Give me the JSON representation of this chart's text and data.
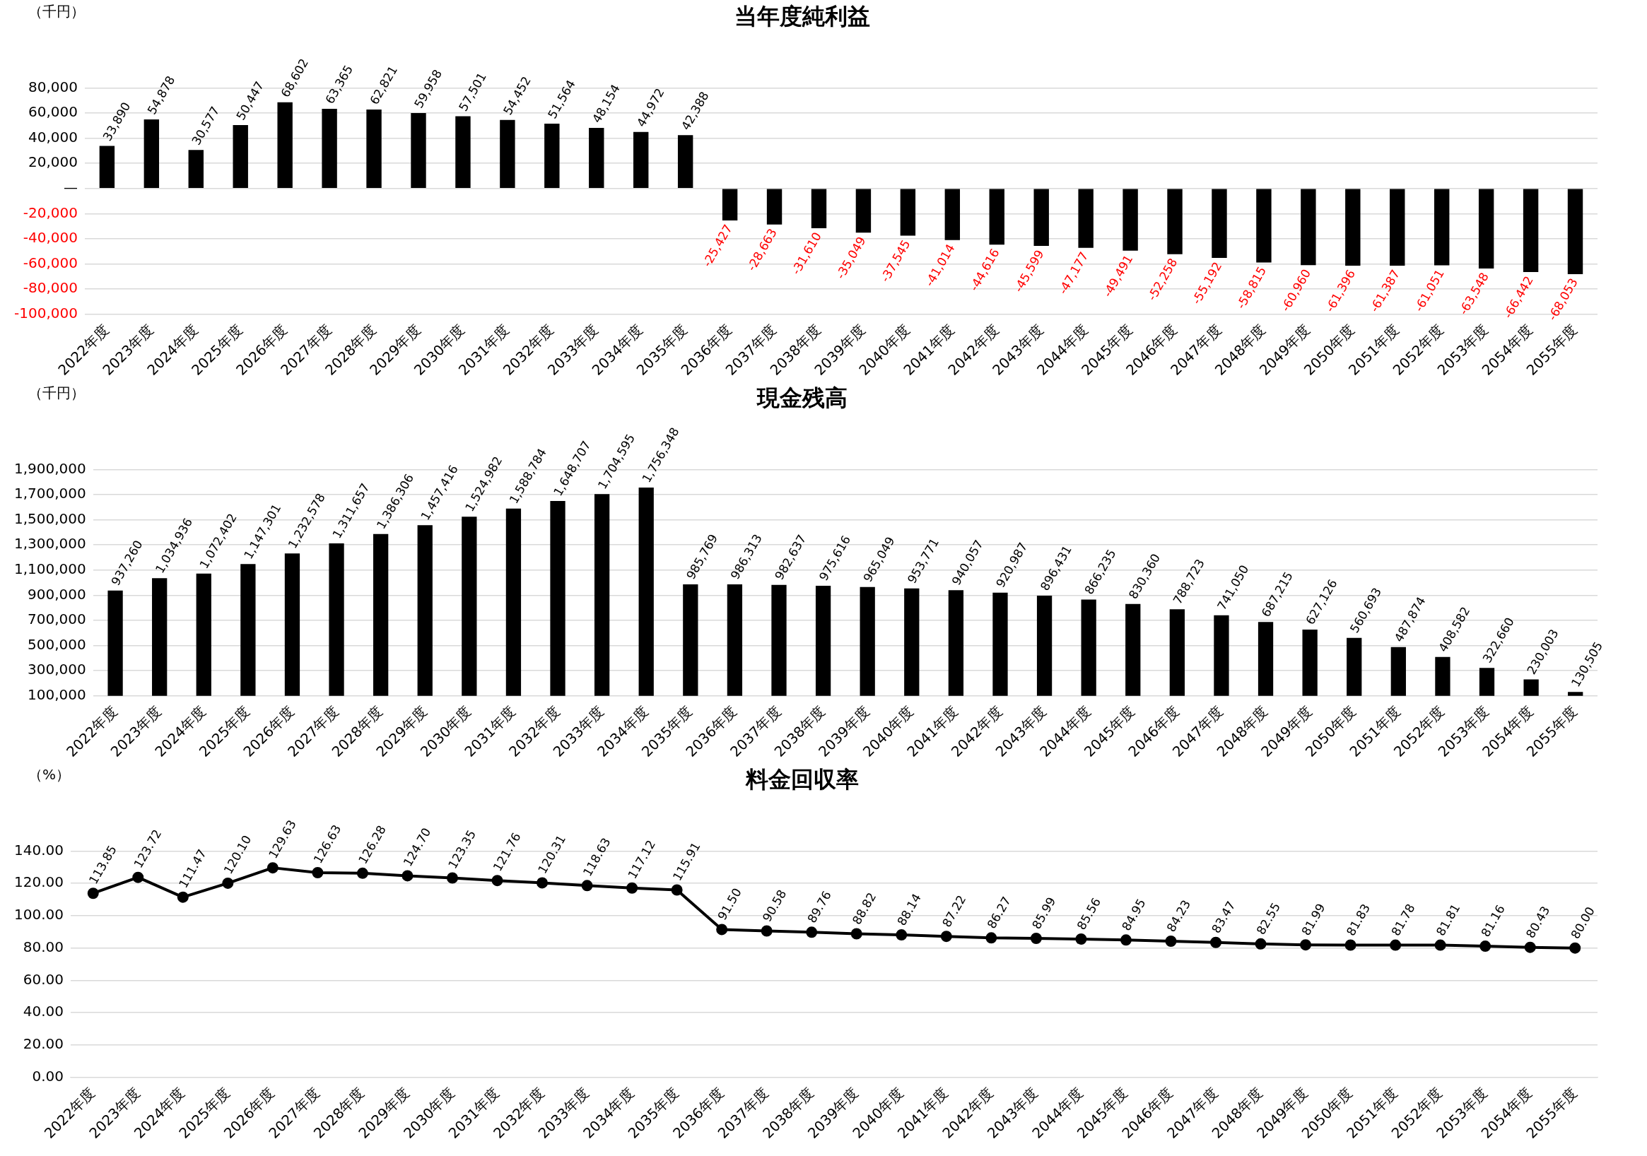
{
  "chart_data": [
    {
      "type": "bar",
      "title": "当年度純利益",
      "ylabel": "（千円）",
      "color": "#000000",
      "grid": "y",
      "categories": [
        "2022年度",
        "2023年度",
        "2024年度",
        "2025年度",
        "2026年度",
        "2027年度",
        "2028年度",
        "2029年度",
        "2030年度",
        "2031年度",
        "2032年度",
        "2033年度",
        "2034年度",
        "2035年度",
        "2036年度",
        "2037年度",
        "2038年度",
        "2039年度",
        "2040年度",
        "2041年度",
        "2042年度",
        "2043年度",
        "2044年度",
        "2045年度",
        "2046年度",
        "2047年度",
        "2048年度",
        "2049年度",
        "2050年度",
        "2051年度",
        "2052年度",
        "2053年度",
        "2054年度",
        "2055年度"
      ],
      "values": [
        33890,
        54878,
        30577,
        50447,
        68602,
        63365,
        62821,
        59958,
        57501,
        54452,
        51564,
        48154,
        44972,
        42388,
        -25427,
        -28663,
        -31610,
        -35049,
        -37545,
        -41014,
        -44616,
        -45599,
        -47177,
        -49491,
        -52258,
        -55192,
        -58815,
        -60960,
        -61396,
        -61387,
        -61051,
        -63548,
        -66442,
        -68053
      ],
      "value_labels": [
        "33,890",
        "54,878",
        "30,577",
        "50,447",
        "68,602",
        "63,365",
        "62,821",
        "59,958",
        "57,501",
        "54,452",
        "51,564",
        "48,154",
        "44,972",
        "42,388",
        "-25,427",
        "-28,663",
        "-31,610",
        "-35,049",
        "-37,545",
        "-41,014",
        "-44,616",
        "-45,599",
        "-47,177",
        "-49,491",
        "-52,258",
        "-55,192",
        "-58,815",
        "-60,960",
        "-61,396",
        "-61,387",
        "-61,051",
        "-63,548",
        "-66,442",
        "-68,053"
      ],
      "ylim": [
        -100000,
        80000
      ],
      "yticks": [
        {
          "value": -100000,
          "label": "-100,000"
        },
        {
          "value": -80000,
          "label": "-80,000"
        },
        {
          "value": -60000,
          "label": "-60,000"
        },
        {
          "value": -40000,
          "label": "-40,000"
        },
        {
          "value": -20000,
          "label": "-20,000"
        },
        {
          "value": 0,
          "label": "—"
        },
        {
          "value": 20000,
          "label": "20,000"
        },
        {
          "value": 40000,
          "label": "40,000"
        },
        {
          "value": 60000,
          "label": "60,000"
        },
        {
          "value": 80000,
          "label": "80,000"
        }
      ]
    },
    {
      "type": "bar",
      "title": "現金残高",
      "ylabel": "（千円）",
      "color": "#000000",
      "grid": "y",
      "categories": [
        "2022年度",
        "2023年度",
        "2024年度",
        "2025年度",
        "2026年度",
        "2027年度",
        "2028年度",
        "2029年度",
        "2030年度",
        "2031年度",
        "2032年度",
        "2033年度",
        "2034年度",
        "2035年度",
        "2036年度",
        "2037年度",
        "2038年度",
        "2039年度",
        "2040年度",
        "2041年度",
        "2042年度",
        "2043年度",
        "2044年度",
        "2045年度",
        "2046年度",
        "2047年度",
        "2048年度",
        "2049年度",
        "2050年度",
        "2051年度",
        "2052年度",
        "2053年度",
        "2054年度",
        "2055年度"
      ],
      "values": [
        937260,
        1034936,
        1072402,
        1147301,
        1232578,
        1311657,
        1386306,
        1457416,
        1524982,
        1588784,
        1648707,
        1704595,
        1756348,
        985769,
        986313,
        982637,
        975616,
        965049,
        953771,
        940057,
        920987,
        896431,
        866235,
        830360,
        788723,
        741050,
        687215,
        627126,
        560693,
        487874,
        408582,
        322660,
        230003,
        130505
      ],
      "value_labels": [
        "937,260",
        "1,034,936",
        "1,072,402",
        "1,147,301",
        "1,232,578",
        "1,311,657",
        "1,386,306",
        "1,457,416",
        "1,524,982",
        "1,588,784",
        "1,648,707",
        "1,704,595",
        "1,756,348",
        "985,769",
        "986,313",
        "982,637",
        "975,616",
        "965,049",
        "953,771",
        "940,057",
        "920,987",
        "896,431",
        "866,235",
        "830,360",
        "788,723",
        "741,050",
        "687,215",
        "627,126",
        "560,693",
        "487,874",
        "408,582",
        "322,660",
        "230,003",
        "130,505"
      ],
      "ylim": [
        100000,
        1900000
      ],
      "yticks": [
        {
          "value": 100000,
          "label": "100,000"
        },
        {
          "value": 300000,
          "label": "300,000"
        },
        {
          "value": 500000,
          "label": "500,000"
        },
        {
          "value": 700000,
          "label": "700,000"
        },
        {
          "value": 900000,
          "label": "900,000"
        },
        {
          "value": 1100000,
          "label": "1,100,000"
        },
        {
          "value": 1300000,
          "label": "1,300,000"
        },
        {
          "value": 1500000,
          "label": "1,500,000"
        },
        {
          "value": 1700000,
          "label": "1,700,000"
        },
        {
          "value": 1900000,
          "label": "1,900,000"
        }
      ]
    },
    {
      "type": "line",
      "title": "料金回収率",
      "ylabel": "（%）",
      "color": "#000000",
      "grid": "y",
      "marker": "circle",
      "categories": [
        "2022年度",
        "2023年度",
        "2024年度",
        "2025年度",
        "2026年度",
        "2027年度",
        "2028年度",
        "2029年度",
        "2030年度",
        "2031年度",
        "2032年度",
        "2033年度",
        "2034年度",
        "2035年度",
        "2036年度",
        "2037年度",
        "2038年度",
        "2039年度",
        "2040年度",
        "2041年度",
        "2042年度",
        "2043年度",
        "2044年度",
        "2045年度",
        "2046年度",
        "2047年度",
        "2048年度",
        "2049年度",
        "2050年度",
        "2051年度",
        "2052年度",
        "2053年度",
        "2054年度",
        "2055年度"
      ],
      "values": [
        113.85,
        123.72,
        111.47,
        120.1,
        129.63,
        126.63,
        126.28,
        124.7,
        123.35,
        121.76,
        120.31,
        118.63,
        117.12,
        115.91,
        91.5,
        90.58,
        89.76,
        88.82,
        88.14,
        87.22,
        86.27,
        85.99,
        85.56,
        84.95,
        84.23,
        83.47,
        82.55,
        81.99,
        81.83,
        81.78,
        81.81,
        81.16,
        80.43,
        80.0
      ],
      "value_labels": [
        "113.85",
        "123.72",
        "111.47",
        "120.10",
        "129.63",
        "126.63",
        "126.28",
        "124.70",
        "123.35",
        "121.76",
        "120.31",
        "118.63",
        "117.12",
        "115.91",
        "91.50",
        "90.58",
        "89.76",
        "88.82",
        "88.14",
        "87.22",
        "86.27",
        "85.99",
        "85.56",
        "84.95",
        "84.23",
        "83.47",
        "82.55",
        "81.99",
        "81.83",
        "81.78",
        "81.81",
        "81.16",
        "80.43",
        "80.00"
      ],
      "ylim": [
        0,
        140
      ],
      "yticks": [
        {
          "value": 0,
          "label": "0.00"
        },
        {
          "value": 20,
          "label": "20.00"
        },
        {
          "value": 40,
          "label": "40.00"
        },
        {
          "value": 60,
          "label": "60.00"
        },
        {
          "value": 80,
          "label": "80.00"
        },
        {
          "value": 100,
          "label": "100.00"
        },
        {
          "value": 120,
          "label": "120.00"
        },
        {
          "value": 140,
          "label": "140.00"
        }
      ]
    }
  ]
}
